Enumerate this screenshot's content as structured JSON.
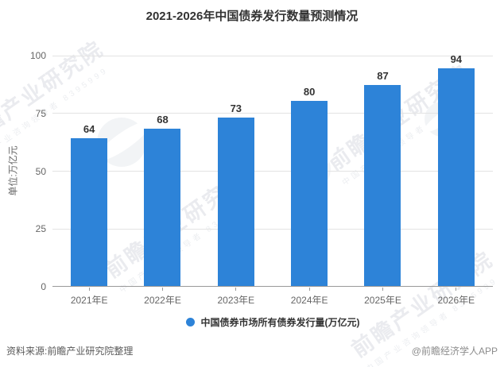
{
  "page": {
    "source_left": "资料来源:前瞻产业研究院整理",
    "source_right": "@前瞻经济学人APP"
  },
  "chart_data": {
    "type": "bar",
    "title": "2021-2026年中国债券发行数量预测情况",
    "categories": [
      "2021年E",
      "2022年E",
      "2023年E",
      "2024年E",
      "2025年E",
      "2026年E"
    ],
    "values": [
      64,
      68,
      73,
      80,
      87,
      94
    ],
    "series_name": "中国债券市场所有债券发行量(万亿元)",
    "xlabel": "",
    "ylabel": "单位:万亿元",
    "ylim": [
      0,
      100
    ],
    "y_ticks": [
      0,
      25,
      50,
      75,
      100
    ],
    "grid": true,
    "legend_position": "bottom",
    "bar_color": "#2D83D8",
    "value_label_color": "#333333",
    "axis_label_color": "#666666",
    "gridline_color": "#e3e3e3",
    "axis_line_color": "#999999"
  },
  "legend": {
    "label": "中国债券市场所有债券发行量(万亿元)"
  },
  "watermark": {
    "brand": "前瞻产业研究院",
    "sub_line": "中国产业咨询领导者 8395999"
  }
}
